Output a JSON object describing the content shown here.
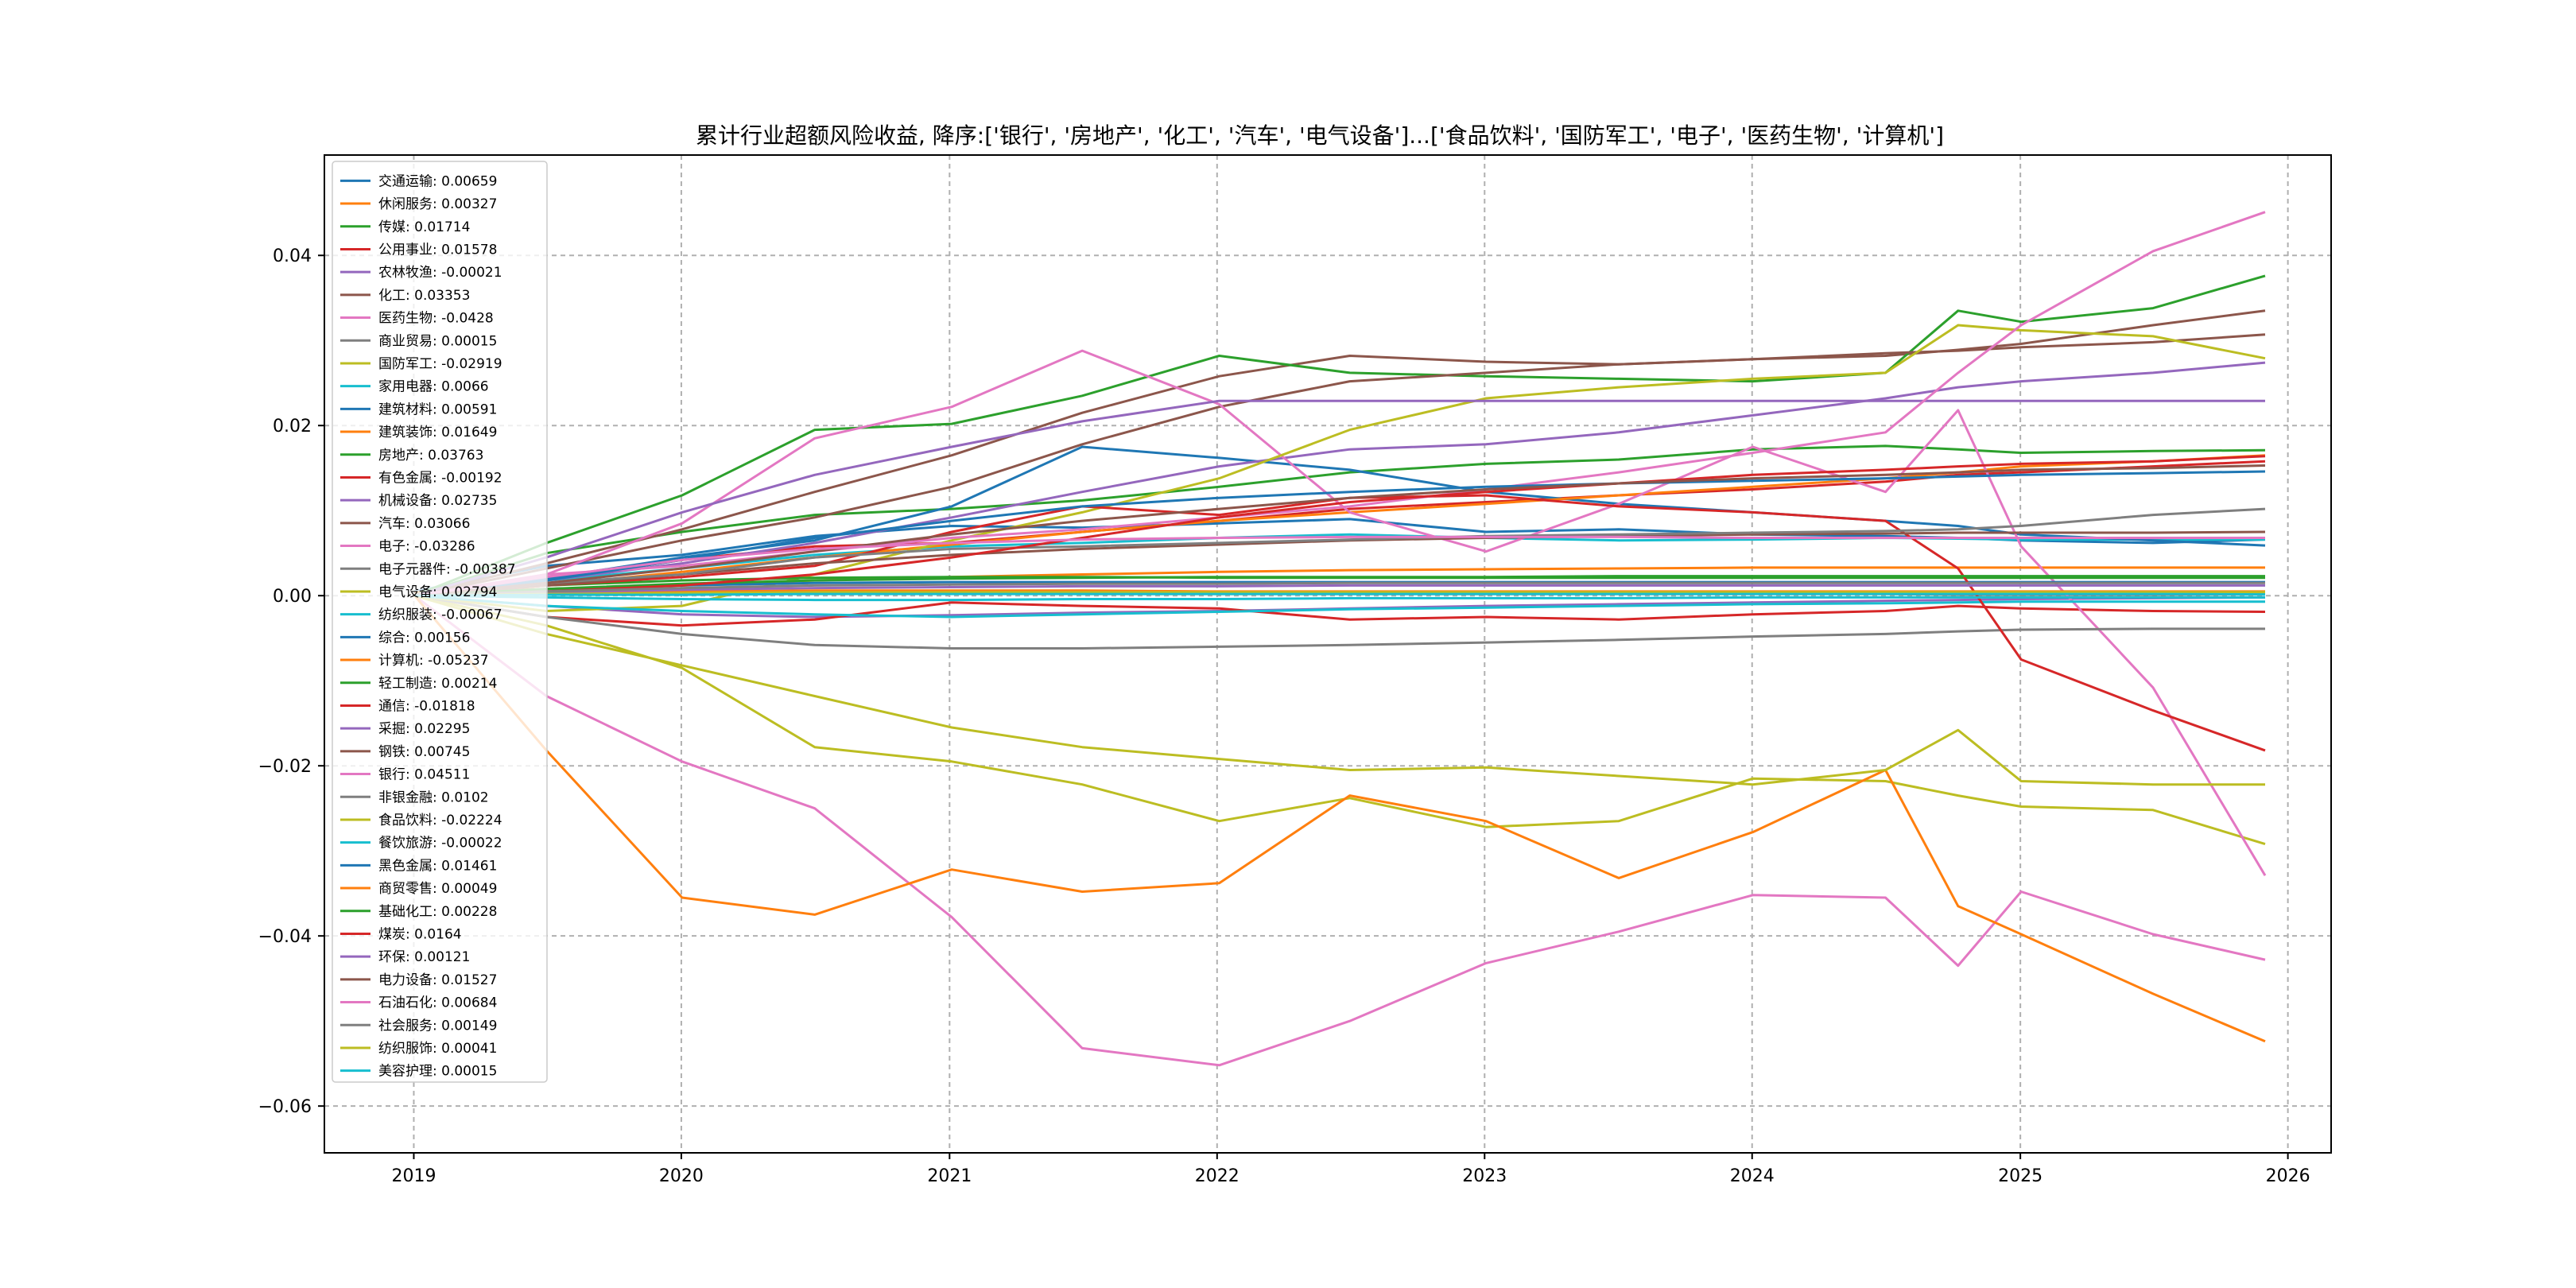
{
  "chart_data": {
    "type": "line",
    "title": "累计行业超额风险收益,  降序:['银行', '房地产', '化工', '汽车', '电气设备']...['食品饮料', '国防军工', '电子', '医药生物', '计算机']",
    "xlabel": "",
    "ylabel": "",
    "x_range": [
      "2018-09-01",
      "2026-03-01"
    ],
    "ylim": [
      -0.0655,
      0.0518
    ],
    "x_ticks": [
      "2019",
      "2020",
      "2021",
      "2022",
      "2023",
      "2024",
      "2025",
      "2026"
    ],
    "y_ticks": [
      -0.06,
      -0.04,
      -0.02,
      0.0,
      0.02,
      0.04
    ],
    "y_tick_labels": [
      "−0.06",
      "−0.04",
      "−0.02",
      "0.00",
      "0.02",
      "0.04"
    ],
    "grid": true,
    "legend_position": "upper-left",
    "x": [
      "2019-01-02",
      "2019-07-01",
      "2020-01-02",
      "2020-07-01",
      "2021-01-04",
      "2021-07-01",
      "2022-01-04",
      "2022-07-01",
      "2023-01-03",
      "2023-07-03",
      "2024-01-02",
      "2024-07-01",
      "2024-10-08",
      "2025-01-02",
      "2025-07-01",
      "2025-12-01"
    ],
    "series": [
      {
        "name": "交通运输",
        "label": "交通运输: 0.00659",
        "color": "#1f77b4",
        "values": [
          0.0005,
          0.0035,
          0.0048,
          0.007,
          0.0082,
          0.008,
          0.0085,
          0.009,
          0.0075,
          0.0078,
          0.0072,
          0.007,
          0.0068,
          0.0065,
          0.0062,
          0.0066
        ]
      },
      {
        "name": "休闲服务",
        "label": "休闲服务: 0.00327",
        "color": "#ff7f0e",
        "values": [
          0.0004,
          0.0008,
          0.0012,
          0.0018,
          0.0022,
          0.0025,
          0.0028,
          0.003,
          0.0031,
          0.0032,
          0.0033,
          0.0033,
          0.0033,
          0.0033,
          0.0033,
          0.0033
        ]
      },
      {
        "name": "传媒",
        "label": "传媒: 0.01714",
        "color": "#2ca02c",
        "values": [
          0.0,
          0.005,
          0.0075,
          0.0095,
          0.0102,
          0.0112,
          0.0128,
          0.0145,
          0.0155,
          0.016,
          0.0172,
          0.0176,
          0.0172,
          0.0168,
          0.017,
          0.0171
        ]
      },
      {
        "name": "公用事业",
        "label": "公用事业: 0.01578",
        "color": "#d62728",
        "values": [
          0.0,
          0.0018,
          0.0042,
          0.0058,
          0.0062,
          0.0075,
          0.0088,
          0.0102,
          0.011,
          0.0118,
          0.0125,
          0.0134,
          0.0142,
          0.0145,
          0.0152,
          0.0158
        ]
      },
      {
        "name": "农林牧渔",
        "label": "农林牧渔: -0.00021",
        "color": "#9467bd",
        "values": [
          0.0,
          -0.0012,
          -0.0022,
          -0.0025,
          -0.0023,
          -0.002,
          -0.0018,
          -0.0015,
          -0.0012,
          -0.001,
          -0.0008,
          -0.0006,
          -0.0005,
          -0.0004,
          -0.0003,
          -0.0002
        ]
      },
      {
        "name": "化工",
        "label": "化工: 0.03353",
        "color": "#8c564b",
        "values": [
          0.0,
          0.0038,
          0.0078,
          0.0122,
          0.0165,
          0.0215,
          0.0258,
          0.0282,
          0.0275,
          0.0272,
          0.0278,
          0.0282,
          0.0289,
          0.0296,
          0.0318,
          0.0335
        ]
      },
      {
        "name": "医药生物",
        "label": "医药生物: -0.0428",
        "color": "#e377c2",
        "values": [
          0.0,
          -0.0118,
          -0.0195,
          -0.025,
          -0.0378,
          -0.0532,
          -0.0552,
          -0.05,
          -0.0432,
          -0.0395,
          -0.0352,
          -0.0355,
          -0.0435,
          -0.0348,
          -0.0398,
          -0.0428
        ]
      },
      {
        "name": "商业贸易",
        "label": "商业贸易: 0.00015",
        "color": "#7f7f7f",
        "values": [
          0.0,
          0.0002,
          0.0003,
          0.0004,
          0.0003,
          0.0002,
          0.0002,
          0.0002,
          0.0002,
          0.0002,
          0.0002,
          0.0002,
          0.0001,
          0.0001,
          0.0001,
          0.00015
        ]
      },
      {
        "name": "国防军工",
        "label": "国防军工: -0.02919",
        "color": "#bcbd22",
        "values": [
          0.0,
          -0.0035,
          -0.0085,
          -0.0178,
          -0.0195,
          -0.0222,
          -0.0265,
          -0.0238,
          -0.0272,
          -0.0265,
          -0.0215,
          -0.0218,
          -0.0235,
          -0.0248,
          -0.0252,
          -0.0292
        ]
      },
      {
        "name": "家用电器",
        "label": "家用电器: 0.0066",
        "color": "#17becf",
        "values": [
          0.0,
          0.0018,
          0.0032,
          0.0048,
          0.0058,
          0.0062,
          0.0068,
          0.0072,
          0.0068,
          0.0065,
          0.0066,
          0.0068,
          0.0067,
          0.0066,
          0.0066,
          0.0066
        ]
      },
      {
        "name": "建筑材料",
        "label": "建筑材料: 0.00591",
        "color": "#1f77b4",
        "values": [
          0.0,
          0.002,
          0.0045,
          0.0065,
          0.0105,
          0.0175,
          0.0162,
          0.0148,
          0.0122,
          0.0108,
          0.0098,
          0.0088,
          0.0082,
          0.0072,
          0.0065,
          0.0059
        ]
      },
      {
        "name": "建筑装饰",
        "label": "建筑装饰: 0.01649",
        "color": "#ff7f0e",
        "values": [
          0.0,
          0.0012,
          0.0028,
          0.0045,
          0.006,
          0.0075,
          0.0088,
          0.0098,
          0.0108,
          0.0118,
          0.0128,
          0.0138,
          0.0145,
          0.0152,
          0.0158,
          0.0165
        ]
      },
      {
        "name": "房地产",
        "label": "房地产: 0.03763",
        "color": "#2ca02c",
        "values": [
          0.0,
          0.0062,
          0.0118,
          0.0195,
          0.0202,
          0.0235,
          0.0282,
          0.0262,
          0.0258,
          0.0255,
          0.0252,
          0.0262,
          0.0335,
          0.0322,
          0.0338,
          0.0376
        ]
      },
      {
        "name": "有色金属",
        "label": "有色金属: -0.00192",
        "color": "#d62728",
        "values": [
          0.0,
          -0.0025,
          -0.0035,
          -0.0028,
          -0.0008,
          -0.0012,
          -0.0015,
          -0.0028,
          -0.0025,
          -0.0028,
          -0.0022,
          -0.0018,
          -0.0012,
          -0.0015,
          -0.0018,
          -0.0019
        ]
      },
      {
        "name": "机械设备",
        "label": "机械设备: 0.02735",
        "color": "#9467bd",
        "values": [
          0.0,
          0.0018,
          0.0038,
          0.0062,
          0.0092,
          0.0122,
          0.0152,
          0.0172,
          0.0178,
          0.0192,
          0.0212,
          0.0232,
          0.0245,
          0.0252,
          0.0262,
          0.0274
        ]
      },
      {
        "name": "汽车",
        "label": "汽车: 0.03066",
        "color": "#8c564b",
        "values": [
          0.0,
          0.0032,
          0.0065,
          0.0092,
          0.0128,
          0.0178,
          0.0222,
          0.0252,
          0.0262,
          0.0272,
          0.0278,
          0.0285,
          0.0288,
          0.0292,
          0.0298,
          0.0307
        ]
      },
      {
        "name": "电子",
        "label": "电子: -0.03286",
        "color": "#e377c2",
        "values": [
          0.0,
          0.0025,
          0.0085,
          0.0185,
          0.0222,
          0.0288,
          0.0225,
          0.0098,
          0.0052,
          0.0108,
          0.0175,
          0.0122,
          0.0218,
          0.0058,
          -0.0108,
          -0.0329
        ]
      },
      {
        "name": "电子元器件",
        "label": "电子元器件: -0.00387",
        "color": "#7f7f7f",
        "values": [
          0.0,
          -0.0025,
          -0.0045,
          -0.0058,
          -0.0062,
          -0.0062,
          -0.006,
          -0.0058,
          -0.0055,
          -0.0052,
          -0.0048,
          -0.0045,
          -0.0042,
          -0.004,
          -0.0039,
          -0.0039
        ]
      },
      {
        "name": "电气设备",
        "label": "电气设备: 0.02794",
        "color": "#bcbd22",
        "values": [
          0.0,
          -0.0018,
          -0.0012,
          0.0025,
          0.0065,
          0.0098,
          0.0138,
          0.0195,
          0.0232,
          0.0245,
          0.0255,
          0.0262,
          0.0318,
          0.0312,
          0.0305,
          0.0279
        ]
      },
      {
        "name": "纺织服装",
        "label": "纺织服装: -0.00067",
        "color": "#17becf",
        "values": [
          0.0,
          -0.0012,
          -0.0018,
          -0.0022,
          -0.0025,
          -0.0022,
          -0.0019,
          -0.0016,
          -0.0014,
          -0.0012,
          -0.001,
          -0.0009,
          -0.0008,
          -0.0007,
          -0.0007,
          -0.0007
        ]
      },
      {
        "name": "综合",
        "label": "综合: 0.00156",
        "color": "#1f77b4",
        "values": [
          0.0,
          0.0008,
          0.0012,
          0.0015,
          0.0016,
          0.0016,
          0.0016,
          0.0016,
          0.0016,
          0.0016,
          0.0016,
          0.0016,
          0.0016,
          0.0016,
          0.0016,
          0.0016
        ]
      },
      {
        "name": "计算机",
        "label": "计算机: -0.05237",
        "color": "#ff7f0e",
        "values": [
          0.0,
          -0.0182,
          -0.0355,
          -0.0375,
          -0.0322,
          -0.0348,
          -0.0338,
          -0.0235,
          -0.0265,
          -0.0332,
          -0.0278,
          -0.0205,
          -0.0365,
          -0.0398,
          -0.0468,
          -0.0524
        ]
      },
      {
        "name": "轻工制造",
        "label": "轻工制造: 0.00214",
        "color": "#2ca02c",
        "values": [
          0.0,
          0.0012,
          0.0018,
          0.0021,
          0.0022,
          0.0022,
          0.0021,
          0.0021,
          0.0021,
          0.0021,
          0.0021,
          0.0021,
          0.0021,
          0.0021,
          0.0021,
          0.0021
        ]
      },
      {
        "name": "通信",
        "label": "通信: -0.01818",
        "color": "#d62728",
        "values": [
          0.0,
          0.0012,
          0.0022,
          0.0035,
          0.0075,
          0.0105,
          0.0095,
          0.0115,
          0.0118,
          0.0105,
          0.0098,
          0.0088,
          0.0032,
          -0.0075,
          -0.0135,
          -0.0182
        ]
      },
      {
        "name": "采掘",
        "label": "采掘: 0.02295",
        "color": "#9467bd",
        "values": [
          0.0,
          0.0045,
          0.0098,
          0.0142,
          0.0175,
          0.0205,
          0.0229,
          0.0229,
          0.0229,
          0.0229,
          0.0229,
          0.0229,
          0.0229,
          0.0229,
          0.0229,
          0.0229
        ]
      },
      {
        "name": "钢铁",
        "label": "钢铁: 0.00745",
        "color": "#8c564b",
        "values": [
          0.0,
          0.0012,
          0.0025,
          0.0038,
          0.0048,
          0.0055,
          0.006,
          0.0065,
          0.0068,
          0.007,
          0.0072,
          0.0073,
          0.0074,
          0.0074,
          0.0074,
          0.0075
        ]
      },
      {
        "name": "银行",
        "label": "银行: 0.04511",
        "color": "#e377c2",
        "values": [
          0.0,
          0.0025,
          0.0035,
          0.0052,
          0.0068,
          0.0078,
          0.0092,
          0.0105,
          0.0125,
          0.0145,
          0.0168,
          0.0192,
          0.0262,
          0.0318,
          0.0405,
          0.0451
        ]
      },
      {
        "name": "非银金融",
        "label": "非银金融: 0.0102",
        "color": "#7f7f7f",
        "values": [
          0.0,
          0.0015,
          0.0025,
          0.0045,
          0.0055,
          0.0058,
          0.0062,
          0.0066,
          0.007,
          0.0072,
          0.0074,
          0.0076,
          0.0078,
          0.0082,
          0.0095,
          0.0102
        ]
      },
      {
        "name": "食品饮料",
        "label": "食品饮料: -0.02224",
        "color": "#bcbd22",
        "values": [
          0.0,
          -0.0045,
          -0.0082,
          -0.0118,
          -0.0155,
          -0.0178,
          -0.0192,
          -0.0205,
          -0.0202,
          -0.0212,
          -0.0222,
          -0.0205,
          -0.0158,
          -0.0218,
          -0.0222,
          -0.0222
        ]
      },
      {
        "name": "餐饮旅游",
        "label": "餐饮旅游: -0.00022",
        "color": "#17becf",
        "values": [
          0.0,
          -0.0002,
          -0.0004,
          -0.0005,
          -0.0005,
          -0.0004,
          -0.0004,
          -0.0003,
          -0.0003,
          -0.0003,
          -0.0002,
          -0.0002,
          -0.0002,
          -0.0002,
          -0.0002,
          -0.0002
        ]
      },
      {
        "name": "黑色金属",
        "label": "黑色金属: 0.01461",
        "color": "#1f77b4",
        "values": [
          0.0,
          0.0018,
          0.0042,
          0.0068,
          0.0088,
          0.0105,
          0.0115,
          0.0122,
          0.0128,
          0.0132,
          0.0135,
          0.0138,
          0.014,
          0.0142,
          0.0144,
          0.0146
        ]
      },
      {
        "name": "商贸零售",
        "label": "商贸零售: 0.00049",
        "color": "#ff7f0e",
        "values": [
          0.0,
          0.0003,
          0.0005,
          0.0006,
          0.0006,
          0.0006,
          0.0005,
          0.0005,
          0.0005,
          0.0005,
          0.0005,
          0.0005,
          0.0005,
          0.0005,
          0.0005,
          0.0005
        ]
      },
      {
        "name": "基础化工",
        "label": "基础化工: 0.00228",
        "color": "#2ca02c",
        "values": [
          0.0,
          0.0008,
          0.0014,
          0.0018,
          0.002,
          0.0021,
          0.0022,
          0.0022,
          0.0022,
          0.0023,
          0.0023,
          0.0023,
          0.0023,
          0.0023,
          0.0023,
          0.0023
        ]
      },
      {
        "name": "煤炭",
        "label": "煤炭: 0.0164",
        "color": "#d62728",
        "values": [
          0.0,
          0.0005,
          0.0012,
          0.0025,
          0.0045,
          0.0068,
          0.0092,
          0.011,
          0.0122,
          0.0132,
          0.0142,
          0.0148,
          0.0152,
          0.0155,
          0.0158,
          0.0164
        ]
      },
      {
        "name": "环保",
        "label": "环保: 0.00121",
        "color": "#9467bd",
        "values": [
          0.0,
          0.0004,
          0.0007,
          0.0009,
          0.001,
          0.0011,
          0.0011,
          0.0012,
          0.0012,
          0.0012,
          0.0012,
          0.0012,
          0.0012,
          0.0012,
          0.0012,
          0.0012
        ]
      },
      {
        "name": "电力设备",
        "label": "电力设备: 0.01527",
        "color": "#8c564b",
        "values": [
          0.0,
          0.0015,
          0.0032,
          0.0052,
          0.0072,
          0.0088,
          0.0102,
          0.0115,
          0.0125,
          0.0132,
          0.0138,
          0.0142,
          0.0145,
          0.0148,
          0.015,
          0.0153
        ]
      },
      {
        "name": "石油石化",
        "label": "石油石化: 0.00684",
        "color": "#e377c2",
        "values": [
          0.0,
          0.0022,
          0.0042,
          0.0055,
          0.0062,
          0.0066,
          0.0068,
          0.0069,
          0.0069,
          0.0069,
          0.0068,
          0.0068,
          0.0068,
          0.0068,
          0.0068,
          0.0068
        ]
      },
      {
        "name": "社会服务",
        "label": "社会服务: 0.00149",
        "color": "#7f7f7f",
        "values": [
          0.0,
          0.0005,
          0.0009,
          0.0012,
          0.0013,
          0.0014,
          0.0014,
          0.0015,
          0.0015,
          0.0015,
          0.0015,
          0.0015,
          0.0015,
          0.0015,
          0.0015,
          0.0015
        ]
      },
      {
        "name": "纺织服饰",
        "label": "纺织服饰: 0.00041",
        "color": "#bcbd22",
        "values": [
          0.0,
          0.0002,
          0.0003,
          0.0004,
          0.0004,
          0.0004,
          0.0004,
          0.0004,
          0.0004,
          0.0004,
          0.0004,
          0.0004,
          0.0004,
          0.0004,
          0.0004,
          0.0004
        ]
      },
      {
        "name": "美容护理",
        "label": "美容护理: 0.00015",
        "color": "#17becf",
        "values": [
          0.0,
          0.0001,
          0.0001,
          0.0002,
          0.0002,
          0.0002,
          0.0002,
          0.0002,
          0.0002,
          0.0002,
          0.0002,
          0.0002,
          0.0002,
          0.0002,
          0.0002,
          0.00015
        ]
      }
    ]
  }
}
